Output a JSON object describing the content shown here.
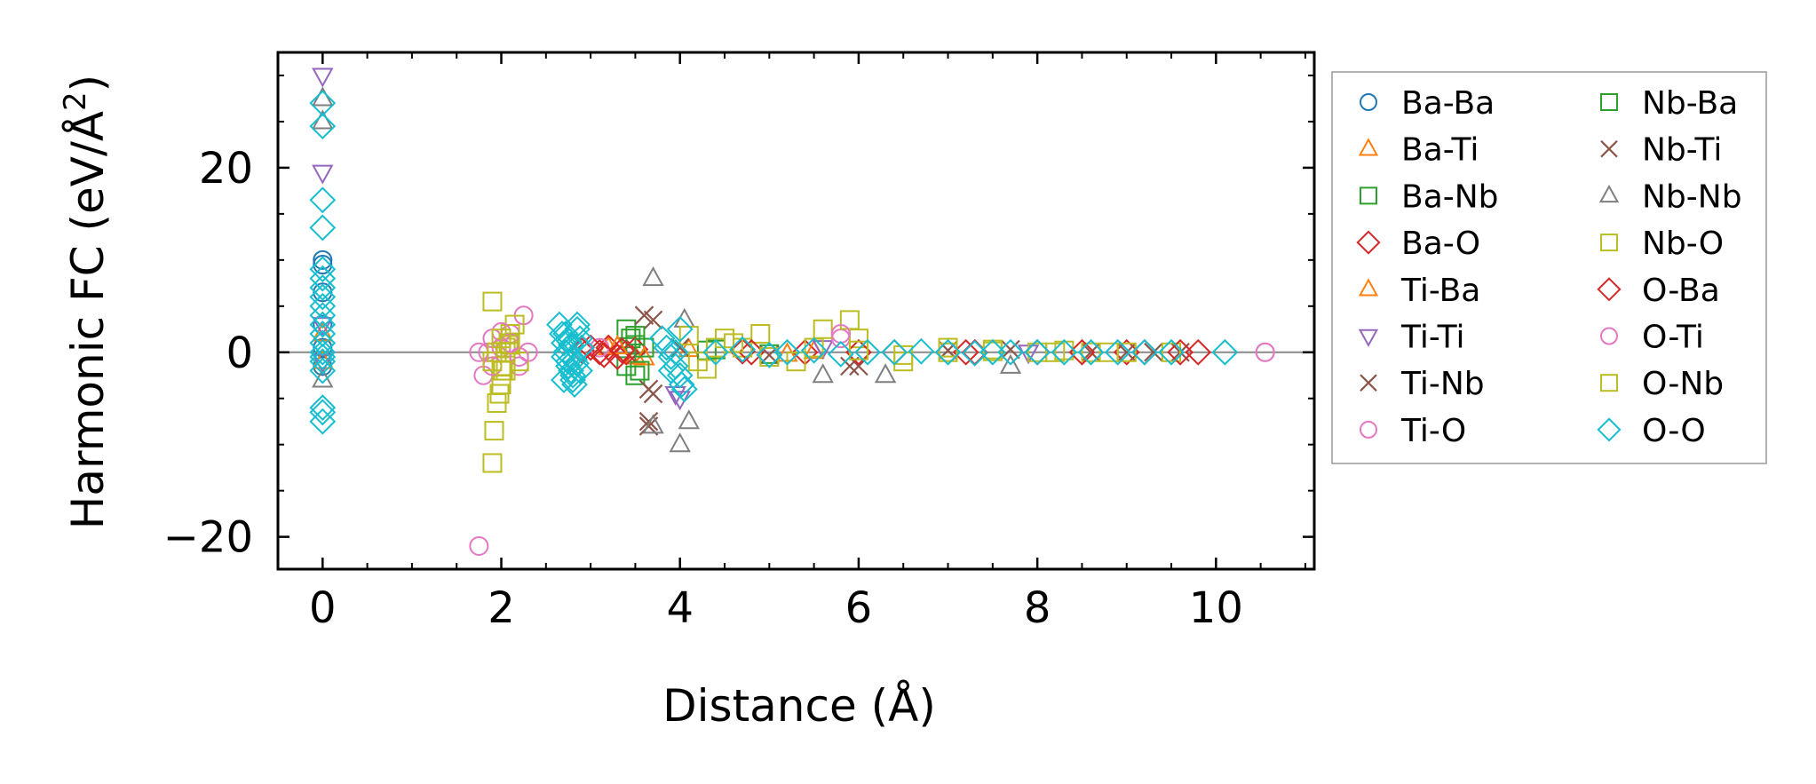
{
  "chart_data": {
    "type": "scatter",
    "title": "",
    "xlabel": "Distance (Å)",
    "ylabel": "Harmonic FC (eV/Å²)",
    "ylabel_main": "Harmonic FC (eV/Å",
    "ylabel_sup": "2",
    "ylabel_end": ")",
    "xlim": [
      -0.5,
      11.1
    ],
    "ylim": [
      -23.5,
      32.5
    ],
    "xticks": [
      0,
      2,
      4,
      6,
      8,
      10
    ],
    "xtick_labels": [
      "0",
      "2",
      "4",
      "6",
      "8",
      "10"
    ],
    "yticks": [
      -20,
      0,
      20
    ],
    "ytick_labels": [
      "−20",
      "0",
      "20"
    ],
    "zero_line": true,
    "legend_position": "outside-right",
    "series": [
      {
        "name": "Ba-Ba",
        "marker": "circle",
        "color": "#1f77b4",
        "x": [
          0,
          0,
          0,
          0,
          0,
          0
        ],
        "y": [
          10.0,
          9.5,
          6.5,
          3.0,
          0.5,
          -1.5
        ]
      },
      {
        "name": "Ba-Ti",
        "marker": "triangle-up",
        "color": "#ff7f0e",
        "x": [
          0,
          0,
          3.2,
          3.5,
          4.1,
          5.2
        ],
        "y": [
          2.0,
          -1.0,
          0.5,
          -0.5,
          0.3,
          -0.2
        ]
      },
      {
        "name": "Ba-Nb",
        "marker": "square",
        "color": "#2ca02c",
        "x": [
          3.4,
          3.45,
          3.5,
          3.4,
          3.5,
          4.4,
          5.0
        ],
        "y": [
          2.5,
          1.5,
          0.8,
          -1.5,
          -2.5,
          0.3,
          -0.2
        ]
      },
      {
        "name": "Ba-O",
        "marker": "diamond",
        "color": "#d62728",
        "x": [
          2.9,
          3.1,
          3.2,
          3.3,
          3.4,
          3.5,
          4.7,
          5.4,
          6.4,
          7.2,
          8.0,
          9.0,
          9.8
        ],
        "y": [
          0.2,
          0.0,
          0.5,
          -0.5,
          0.0,
          0.3,
          0.1,
          0.0,
          0.0,
          0.0,
          0.0,
          0.0,
          0.0
        ]
      },
      {
        "name": "Ti-Ba",
        "marker": "triangle-up",
        "color": "#ff7f0e",
        "x": [
          3.3,
          3.6,
          5.5
        ],
        "y": [
          0.6,
          -0.6,
          0.1
        ]
      },
      {
        "name": "Ti-Ti",
        "marker": "triangle-down",
        "color": "#9467bd",
        "x": [
          0,
          0,
          0,
          0,
          3.95,
          4.0,
          5.6,
          7.9
        ],
        "y": [
          30.0,
          19.5,
          3.0,
          -1.0,
          -4.5,
          -5.0,
          0.5,
          0.0
        ]
      },
      {
        "name": "Ti-Nb",
        "marker": "x",
        "color": "#8c564b",
        "x": [
          3.6,
          3.65,
          3.65,
          3.7,
          4.0,
          5.0,
          6.0,
          7.0,
          8.6,
          9.3
        ],
        "y": [
          4.0,
          -4.0,
          -7.5,
          3.5,
          0.5,
          -0.3,
          -1.5,
          0.2,
          0.0,
          0.0
        ]
      },
      {
        "name": "Ti-O",
        "marker": "circle",
        "color": "#e377c2",
        "x": [
          1.75,
          1.8,
          1.85,
          1.9,
          2.0,
          2.1,
          2.2,
          2.25,
          2.3,
          3.1,
          5.8,
          7.0,
          10.55
        ],
        "y": [
          -21.0,
          -2.5,
          0.0,
          1.5,
          0.5,
          2.0,
          -1.5,
          4.0,
          0.0,
          0.5,
          1.5,
          0.0,
          0.0
        ]
      },
      {
        "name": "Nb-Ba",
        "marker": "square",
        "color": "#2ca02c",
        "x": [
          3.5,
          3.55,
          3.6,
          4.3
        ],
        "y": [
          1.8,
          -2.0,
          0.5,
          0.2
        ]
      },
      {
        "name": "Nb-Ti",
        "marker": "x",
        "color": "#8c564b",
        "x": [
          3.65,
          3.7,
          5.9,
          7.7,
          9.0,
          9.6
        ],
        "y": [
          -8.0,
          -4.5,
          -1.5,
          0.3,
          0.0,
          0.0
        ]
      },
      {
        "name": "Nb-Nb",
        "marker": "triangle-up",
        "color": "#7f7f7f",
        "x": [
          0,
          0,
          0,
          3.7,
          3.7,
          4.0,
          4.05,
          4.1,
          5.6,
          6.3,
          7.7
        ],
        "y": [
          27.5,
          25.0,
          -3.0,
          8.0,
          -8.0,
          -10.0,
          3.5,
          -7.5,
          -2.5,
          -2.5,
          -1.5
        ]
      },
      {
        "name": "Nb-O",
        "marker": "square",
        "color": "#bcbd22",
        "x": [
          1.9,
          1.9,
          1.92,
          1.95,
          1.98,
          2.0,
          2.02,
          2.05,
          2.08,
          2.1,
          2.15,
          2.2,
          2.0,
          2.05,
          4.1,
          4.3,
          4.5,
          4.7,
          4.9,
          5.3,
          5.6,
          5.9,
          6.0,
          6.5,
          7.0,
          7.5,
          8.0,
          8.3,
          8.6,
          9.0,
          9.5
        ],
        "y": [
          5.5,
          -12.0,
          -8.5,
          -5.5,
          -4.5,
          -3.5,
          -2.0,
          0.5,
          1.0,
          2.0,
          3.0,
          -1.0,
          -1.5,
          0.0,
          1.8,
          -1.8,
          1.5,
          0.5,
          2.0,
          -1.0,
          2.5,
          3.5,
          1.5,
          -1.0,
          0.5,
          0.3,
          0.0,
          0.2,
          0.0,
          0.0,
          0.0
        ]
      },
      {
        "name": "O-Ba",
        "marker": "diamond",
        "color": "#d62728",
        "x": [
          3.0,
          3.15,
          3.35,
          4.8,
          6.0,
          7.3,
          8.5,
          9.2,
          9.6
        ],
        "y": [
          0.5,
          -0.3,
          0.2,
          0.0,
          0.0,
          0.0,
          0.0,
          0.0,
          0.0
        ]
      },
      {
        "name": "O-Ti",
        "marker": "circle",
        "color": "#e377c2",
        "x": [
          1.75,
          1.9,
          2.0,
          2.1,
          2.2,
          5.8,
          10.55
        ],
        "y": [
          0.0,
          -1.5,
          2.2,
          1.0,
          -0.5,
          2.0,
          0.0
        ]
      },
      {
        "name": "O-Nb",
        "marker": "square",
        "color": "#bcbd22",
        "x": [
          1.9,
          1.95,
          2.0,
          2.05,
          2.1,
          4.2,
          4.4,
          4.6,
          5.0,
          5.5,
          6.0,
          6.5,
          7.0,
          7.5,
          8.2,
          8.8
        ],
        "y": [
          -1.0,
          0.0,
          1.5,
          -2.0,
          0.8,
          -1.0,
          0.5,
          1.0,
          -0.5,
          0.5,
          0.2,
          -0.3,
          0.0,
          0.1,
          0.0,
          0.0
        ]
      },
      {
        "name": "O-O",
        "marker": "diamond",
        "color": "#17becf",
        "x": [
          0,
          0,
          0,
          0,
          0,
          0,
          0,
          0,
          0,
          0,
          0,
          0,
          0,
          0,
          0,
          0,
          0,
          0,
          0,
          0,
          2.65,
          2.68,
          2.7,
          2.72,
          2.75,
          2.78,
          2.8,
          2.82,
          2.85,
          2.88,
          2.9,
          2.7,
          2.75,
          2.8,
          2.85,
          2.72,
          2.78,
          2.82,
          2.88,
          2.7,
          2.76,
          2.84,
          3.8,
          3.85,
          3.9,
          3.95,
          4.0,
          4.02,
          4.05,
          4.0,
          3.9,
          3.95,
          4.4,
          4.7,
          5.0,
          5.2,
          5.5,
          5.8,
          6.1,
          6.4,
          6.7,
          7.0,
          7.3,
          7.5,
          7.7,
          8.0,
          8.3,
          8.6,
          8.9,
          9.2,
          9.5,
          10.1
        ],
        "y": [
          27.0,
          24.5,
          16.5,
          13.5,
          9.0,
          8.0,
          7.0,
          6.0,
          5.0,
          4.0,
          3.0,
          2.0,
          1.0,
          0.0,
          -0.5,
          -1.0,
          -2.0,
          -6.0,
          -6.5,
          -7.5,
          3.0,
          2.0,
          1.0,
          0.0,
          -1.0,
          -2.0,
          -3.0,
          -3.5,
          2.5,
          1.5,
          0.5,
          -0.5,
          -1.5,
          -2.5,
          3.0,
          2.0,
          0.8,
          -0.8,
          -2.0,
          -3.0,
          1.2,
          -1.2,
          1.5,
          0.5,
          -0.5,
          -1.5,
          -2.5,
          -3.5,
          -4.0,
          2.5,
          -2.0,
          0.0,
          0.0,
          0.3,
          -0.3,
          0.0,
          0.2,
          -0.2,
          0.0,
          0.0,
          0.1,
          0.0,
          -0.1,
          0.0,
          0.0,
          0.0,
          0.0,
          0.0,
          0.0,
          0.0,
          0.0,
          0.0
        ]
      }
    ]
  },
  "legend": {
    "col1": [
      "Ba-Ba",
      "Ba-Ti",
      "Ba-Nb",
      "Ba-O",
      "Ti-Ba",
      "Ti-Ti",
      "Ti-Nb",
      "Ti-O"
    ],
    "col2": [
      "Nb-Ba",
      "Nb-Ti",
      "Nb-Nb",
      "Nb-O",
      "O-Ba",
      "O-Ti",
      "O-Nb",
      "O-O"
    ]
  }
}
